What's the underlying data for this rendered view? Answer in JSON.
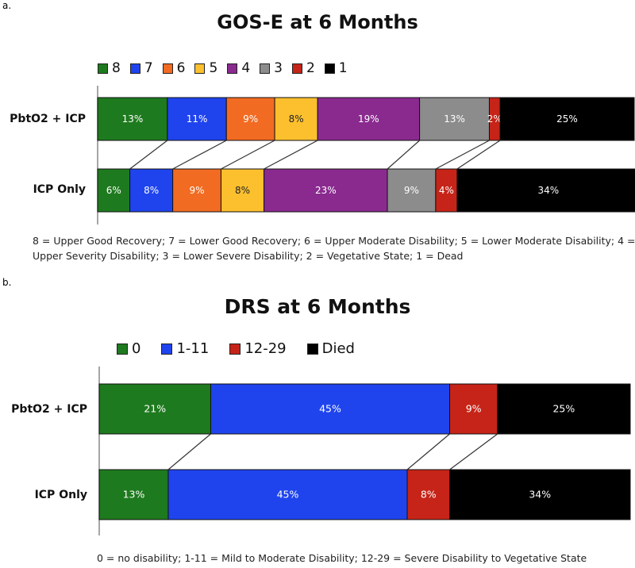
{
  "panels": [
    {
      "label": "a.",
      "footnote": "8 = Upper Good Recovery; 7 = Lower Good Recovery; 6 = Upper Moderate Disability; 5 = Lower Moderate Disability; 4 = Upper Severity Disability; 3 = Lower Severe Disability; 2 = Vegetative State; 1 = Dead"
    },
    {
      "label": "b.",
      "footnote": "0 = no disability; 1-11 = Mild to Moderate Disability; 12-29 = Severe Disability to Vegetative State"
    }
  ],
  "chart_data": [
    {
      "type": "bar",
      "orientation": "horizontal-stacked",
      "title": "GOS-E at 6 Months",
      "categories": [
        "PbtO2 + ICP",
        "ICP Only"
      ],
      "series": [
        {
          "name": "8",
          "color": "#1e7a1e",
          "values": [
            13,
            6
          ]
        },
        {
          "name": "7",
          "color": "#1f44ee",
          "values": [
            11,
            8
          ]
        },
        {
          "name": "6",
          "color": "#f26b22",
          "values": [
            9,
            9
          ]
        },
        {
          "name": "5",
          "color": "#fcc02e",
          "values": [
            8,
            8
          ]
        },
        {
          "name": "4",
          "color": "#8a2a8f",
          "values": [
            19,
            23
          ]
        },
        {
          "name": "3",
          "color": "#8c8c8c",
          "values": [
            13,
            9
          ]
        },
        {
          "name": "2",
          "color": "#c62418",
          "values": [
            2,
            4
          ]
        },
        {
          "name": "1",
          "color": "#000000",
          "values": [
            25,
            34
          ]
        }
      ],
      "data_labels": [
        [
          "13%",
          "11%",
          "9%",
          "8%",
          "19%",
          "13%",
          "2%",
          "25%"
        ],
        [
          "6%",
          "8%",
          "9%",
          "8%",
          "23%",
          "9%",
          "4%",
          "34%"
        ]
      ],
      "legend": "top",
      "xlim": [
        0,
        100
      ]
    },
    {
      "type": "bar",
      "orientation": "horizontal-stacked",
      "title": "DRS at 6 Months",
      "categories": [
        "PbtO2 + ICP",
        "ICP Only"
      ],
      "series": [
        {
          "name": "0",
          "color": "#1e7a1e",
          "values": [
            21,
            13
          ]
        },
        {
          "name": "1-11",
          "color": "#1f44ee",
          "values": [
            45,
            45
          ]
        },
        {
          "name": "12-29",
          "color": "#c62418",
          "values": [
            9,
            8
          ]
        },
        {
          "name": "Died",
          "color": "#000000",
          "values": [
            25,
            34
          ]
        }
      ],
      "data_labels": [
        [
          "21%",
          "45%",
          "9%",
          "25%"
        ],
        [
          "13%",
          "45%",
          "8%",
          "34%"
        ]
      ],
      "legend": "top",
      "xlim": [
        0,
        100
      ]
    }
  ]
}
